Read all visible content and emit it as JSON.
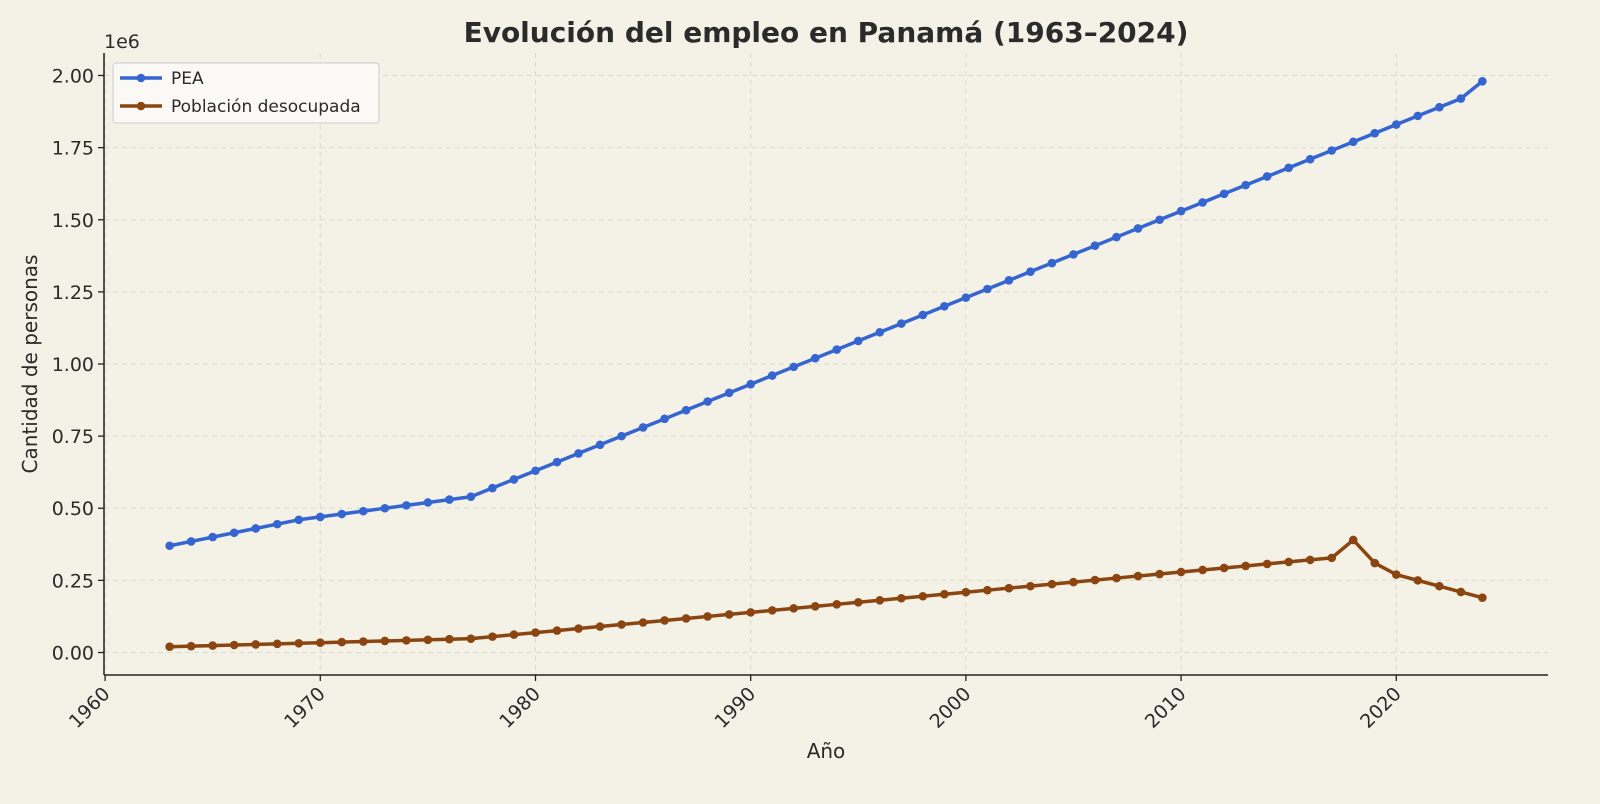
{
  "chart_data": {
    "type": "line",
    "title": "Evolución del empleo en Panamá (1963–2024)",
    "xlabel": "Año",
    "ylabel": "Cantidad de personas",
    "y_offset_label": "1e6",
    "xlim": [
      1959.95,
      2027.05
    ],
    "ylim": [
      -0.078,
      2.078
    ],
    "y_scale_note": "values in millions (×1e6)",
    "grid": true,
    "legend_position": "top-left",
    "x_ticks": [
      1960,
      1970,
      1980,
      1990,
      2000,
      2010,
      2020
    ],
    "y_ticks": [
      "0.00",
      "0.25",
      "0.50",
      "0.75",
      "1.00",
      "1.25",
      "1.50",
      "1.75",
      "2.00"
    ],
    "x": [
      1963,
      1964,
      1965,
      1966,
      1967,
      1968,
      1969,
      1970,
      1971,
      1972,
      1973,
      1974,
      1975,
      1976,
      1977,
      1978,
      1979,
      1980,
      1981,
      1982,
      1983,
      1984,
      1985,
      1986,
      1987,
      1988,
      1989,
      1990,
      1991,
      1992,
      1993,
      1994,
      1995,
      1996,
      1997,
      1998,
      1999,
      2000,
      2001,
      2002,
      2003,
      2004,
      2005,
      2006,
      2007,
      2008,
      2009,
      2010,
      2011,
      2012,
      2013,
      2014,
      2015,
      2016,
      2017,
      2018,
      2019,
      2020,
      2021,
      2022,
      2023,
      2024
    ],
    "series": [
      {
        "name": "PEA",
        "color": "#3565d0",
        "values": [
          0.37,
          0.385,
          0.4,
          0.415,
          0.43,
          0.445,
          0.46,
          0.47,
          0.48,
          0.49,
          0.5,
          0.51,
          0.52,
          0.53,
          0.54,
          0.57,
          0.6,
          0.63,
          0.66,
          0.69,
          0.72,
          0.75,
          0.78,
          0.81,
          0.84,
          0.87,
          0.9,
          0.93,
          0.96,
          0.99,
          1.02,
          1.05,
          1.08,
          1.11,
          1.14,
          1.17,
          1.2,
          1.23,
          1.26,
          1.29,
          1.32,
          1.35,
          1.38,
          1.41,
          1.44,
          1.47,
          1.5,
          1.53,
          1.56,
          1.59,
          1.62,
          1.65,
          1.68,
          1.71,
          1.74,
          1.77,
          1.8,
          1.83,
          1.86,
          1.89,
          1.92,
          1.98
        ]
      },
      {
        "name": "Población desocupada",
        "color": "#8b4510",
        "values": [
          0.02,
          0.022,
          0.024,
          0.026,
          0.028,
          0.03,
          0.032,
          0.034,
          0.036,
          0.038,
          0.04,
          0.042,
          0.044,
          0.046,
          0.048,
          0.055,
          0.062,
          0.069,
          0.076,
          0.083,
          0.09,
          0.097,
          0.104,
          0.111,
          0.118,
          0.125,
          0.132,
          0.139,
          0.146,
          0.153,
          0.16,
          0.167,
          0.174,
          0.181,
          0.188,
          0.195,
          0.202,
          0.209,
          0.216,
          0.223,
          0.23,
          0.237,
          0.244,
          0.251,
          0.258,
          0.265,
          0.272,
          0.279,
          0.286,
          0.293,
          0.3,
          0.307,
          0.314,
          0.321,
          0.328,
          0.39,
          0.31,
          0.27,
          0.25,
          0.23,
          0.21,
          0.19
        ]
      }
    ]
  }
}
